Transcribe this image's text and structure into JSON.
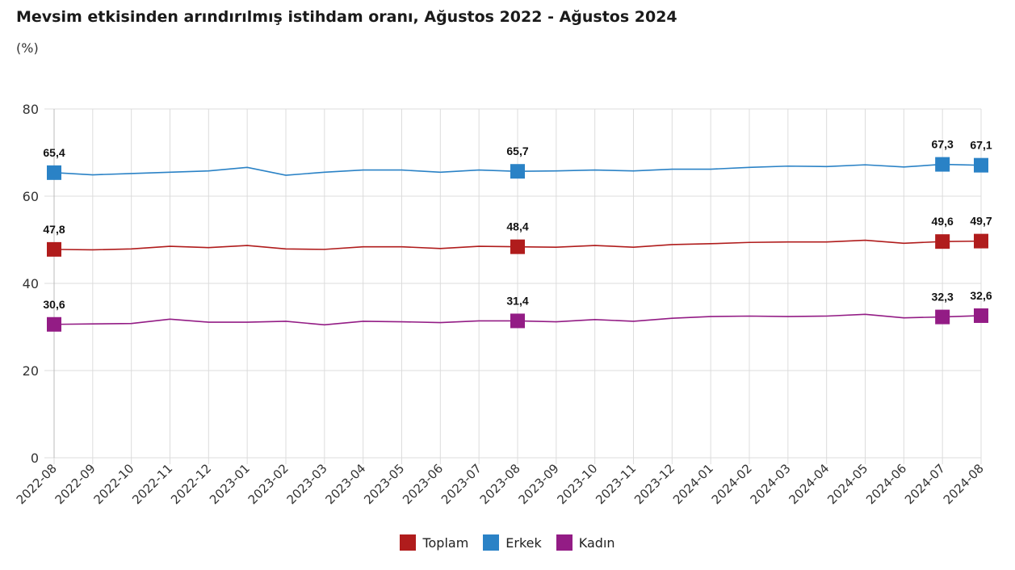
{
  "title": "Mevsim etkisinden arındırılmış istihdam oranı, Ağustos 2022 - Ağustos 2024",
  "subtitle": "(%)",
  "chart_data": {
    "type": "line",
    "x": [
      "2022-08",
      "2022-09",
      "2022-10",
      "2022-11",
      "2022-12",
      "2023-01",
      "2023-02",
      "2023-03",
      "2023-04",
      "2023-05",
      "2023-06",
      "2023-07",
      "2023-08",
      "2023-09",
      "2023-10",
      "2023-11",
      "2023-12",
      "2024-01",
      "2024-02",
      "2024-03",
      "2024-04",
      "2024-05",
      "2024-06",
      "2024-07",
      "2024-08"
    ],
    "ylim": [
      0,
      80
    ],
    "yticks": [
      0,
      20,
      40,
      60,
      80
    ],
    "grid": true,
    "legend_position": "bottom",
    "series": [
      {
        "name": "Toplam",
        "color": "#b01c1c",
        "values": [
          47.8,
          47.7,
          47.9,
          48.5,
          48.2,
          48.7,
          47.9,
          47.8,
          48.4,
          48.4,
          48.0,
          48.5,
          48.4,
          48.3,
          48.7,
          48.3,
          48.9,
          49.1,
          49.4,
          49.5,
          49.5,
          49.9,
          49.2,
          49.6,
          49.7
        ],
        "labels": {
          "0": "47,8",
          "12": "48,4",
          "23": "49,6",
          "24": "49,7"
        }
      },
      {
        "name": "Erkek",
        "color": "#2a82c6",
        "values": [
          65.4,
          64.9,
          65.2,
          65.5,
          65.8,
          66.6,
          64.8,
          65.5,
          66.0,
          66.0,
          65.5,
          66.0,
          65.7,
          65.8,
          66.0,
          65.8,
          66.2,
          66.2,
          66.6,
          66.9,
          66.8,
          67.2,
          66.7,
          67.3,
          67.1
        ],
        "labels": {
          "0": "65,4",
          "12": "65,7",
          "23": "67,3",
          "24": "67,1"
        }
      },
      {
        "name": "Kadın",
        "color": "#931c85",
        "values": [
          30.6,
          30.7,
          30.8,
          31.8,
          31.1,
          31.1,
          31.3,
          30.5,
          31.3,
          31.2,
          31.0,
          31.4,
          31.4,
          31.2,
          31.7,
          31.3,
          32.0,
          32.4,
          32.5,
          32.4,
          32.5,
          32.9,
          32.1,
          32.3,
          32.6
        ],
        "labels": {
          "0": "30,6",
          "12": "31,4",
          "23": "32,3",
          "24": "32,6"
        }
      }
    ]
  }
}
